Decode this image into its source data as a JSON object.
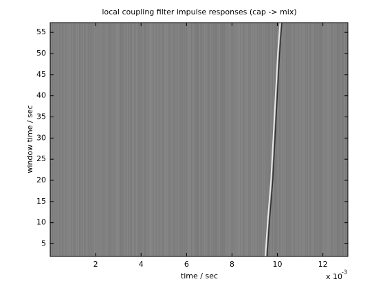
{
  "chart_data": {
    "type": "heatmap",
    "title": "local coupling filter impulse responses (cap -> mix)",
    "xlabel": "time / sec",
    "ylabel": "window time / sec",
    "x_exponent": {
      "base": "x 10",
      "power": "-3"
    },
    "xlim": [
      0,
      13.1
    ],
    "ylim": [
      2,
      57.3
    ],
    "xticks": [
      2,
      4,
      6,
      8,
      10,
      12
    ],
    "yticks": [
      5,
      10,
      15,
      20,
      25,
      30,
      35,
      40,
      45,
      50,
      55
    ],
    "ridge": {
      "x": [
        9.5,
        9.6,
        9.75,
        9.85,
        9.95,
        10.05,
        10.15
      ],
      "values": [
        2,
        10,
        20,
        30,
        40,
        50,
        57.3
      ]
    },
    "color": "#808080"
  }
}
